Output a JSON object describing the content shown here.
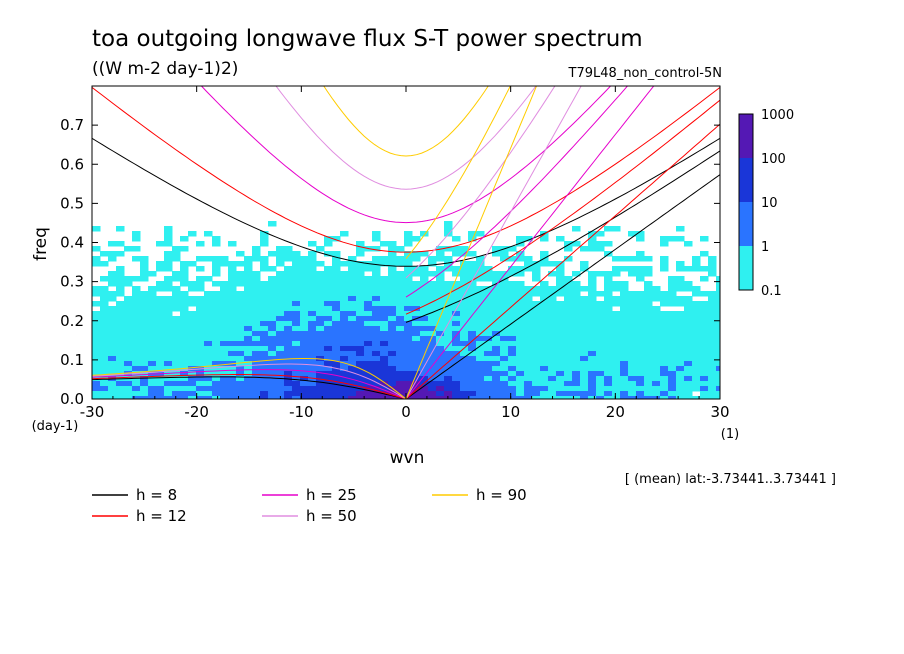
{
  "chart_data": {
    "type": "heatmap",
    "title": "toa outgoing longwave flux S-T power spectrum",
    "subtitle": "((W m-2 day-1)2)",
    "run_label": "T79L48_non_control-5N",
    "xlabel": "wvn",
    "x_unit": "(1)",
    "ylabel": "freq",
    "y_unit": "(day-1)",
    "xlim": [
      -30,
      30
    ],
    "ylim": [
      0,
      0.8
    ],
    "x_ticks": [
      "-30",
      "-20",
      "-10",
      "0",
      "10",
      "20",
      "30"
    ],
    "y_ticks": [
      "0.0",
      "0.1",
      "0.2",
      "0.3",
      "0.4",
      "0.5",
      "0.6",
      "0.7"
    ],
    "footer_note": "[ (mean) lat:-3.73441..3.73441 ]",
    "colorbar": {
      "levels": [
        "0.1",
        "1",
        "10",
        "100",
        "1000"
      ],
      "colors": [
        "#2ff0f0",
        "#2a74ff",
        "#1a36d8",
        "#5418b4"
      ]
    },
    "dispersion_curves": [
      {
        "label": "h =  8",
        "h": 8,
        "color": "#000000"
      },
      {
        "label": "h = 12",
        "h": 12,
        "color": "#ff0000"
      },
      {
        "label": "h = 25",
        "h": 25,
        "color": "#e600cc"
      },
      {
        "label": "h = 50",
        "h": 50,
        "color": "#e08ee0"
      },
      {
        "label": "h = 90",
        "h": 90,
        "color": "#ffcc00"
      }
    ],
    "power_regions": [
      {
        "level": "0.1-1",
        "approx_extent": {
          "wvn": [
            -30,
            30
          ],
          "freq": [
            0,
            0.55
          ]
        }
      },
      {
        "level": "1-10",
        "approx_extent": {
          "wvn": [
            -25,
            12
          ],
          "freq": [
            0,
            0.32
          ]
        }
      },
      {
        "level": "10-100",
        "approx_extent": {
          "wvn": [
            -10,
            8
          ],
          "freq": [
            0,
            0.12
          ]
        }
      },
      {
        "level": "100-1000",
        "approx_extent": {
          "wvn": [
            -2,
            3
          ],
          "freq": [
            0,
            0.04
          ]
        }
      }
    ]
  }
}
